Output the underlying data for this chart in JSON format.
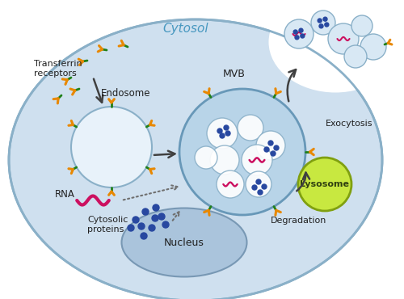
{
  "bg_color": "#ffffff",
  "cell_color": "#cfe0ef",
  "cell_edge_color": "#8ab0c8",
  "endosome_color": "#e8f2fa",
  "endosome_edge": "#8ab0c8",
  "mvb_color": "#b8d4e8",
  "mvb_edge": "#6898b8",
  "mvb_inner_color": "#d0e4f0",
  "nucleus_color": "#aac4dc",
  "nucleus_edge": "#7898b4",
  "lysosome_color": "#c8e840",
  "lysosome_edge": "#80a010",
  "receptor_color": "#e88800",
  "receptor_stem_color": "#208018",
  "rna_color": "#cc1060",
  "protein_color": "#2848a0",
  "exosome_color": "#d8e8f4",
  "exosome_edge": "#8ab0c8",
  "arrow_color": "#404040",
  "dotarrow_color": "#707070",
  "text_color": "#202020",
  "cytosol_color": "#4898c0",
  "labels": {
    "transferrin": "Transferrin\nreceptors",
    "endosome": "Endosome",
    "mvb": "MVB",
    "rna": "RNA",
    "cytosolic": "Cytosolic\nproteins",
    "nucleus": "Nucleus",
    "exocytosis": "Exocytosis",
    "lysosome": "Lysosome",
    "degradation": "Degradation",
    "cytosol": "Cytosol"
  }
}
